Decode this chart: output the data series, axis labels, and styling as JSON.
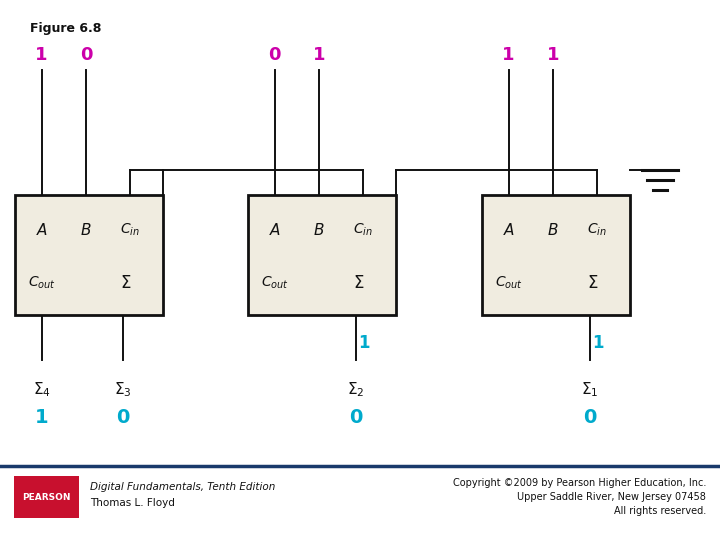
{
  "title": "Figure 6.8",
  "bg_color": "#ffffff",
  "box_fill": "#f0ece0",
  "box_edge": "#111111",
  "line_color": "#111111",
  "magenta": "#cc00aa",
  "cyan": "#00aacc",
  "pearson_bg": "#c8102e",
  "A_vals": [
    "1",
    "0",
    "1"
  ],
  "B_vals": [
    "0",
    "1",
    "1"
  ],
  "carry_mid": [
    "1",
    "1"
  ],
  "sigma_labels": [
    "Σ₄",
    "Σ₃",
    "Σ₂",
    "Σ₁"
  ],
  "sigma_vals": [
    "1",
    "0",
    "0",
    "0"
  ],
  "ground_lines": [
    0.05,
    0.035,
    0.02
  ],
  "footer_italic": "Digital Fundamentals, Tenth Edition",
  "footer_plain": "Thomas L. Floyd",
  "copyright_line1": "Copyright ©2009 by Pearson Higher Education, Inc.",
  "copyright_line2": "Upper Saddle River, New Jersey 07458",
  "copyright_line3": "All rights reserved."
}
